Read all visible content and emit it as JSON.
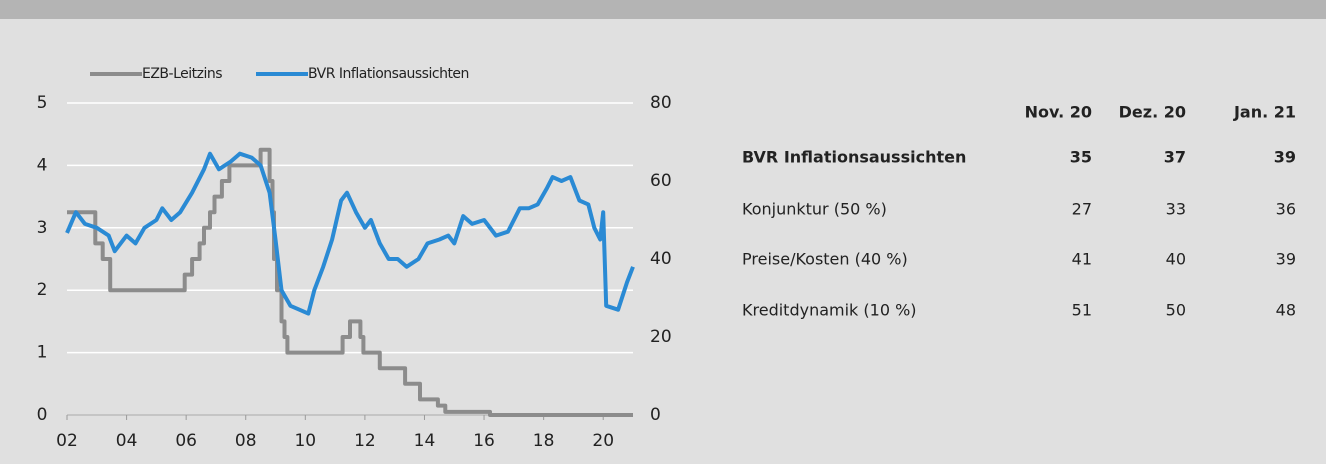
{
  "chart_data": {
    "type": "line",
    "xlim": [
      2002,
      2021
    ],
    "xticks": [
      {
        "value": 2002,
        "label": "02"
      },
      {
        "value": 2004,
        "label": "04"
      },
      {
        "value": 2006,
        "label": "06"
      },
      {
        "value": 2008,
        "label": "08"
      },
      {
        "value": 2010,
        "label": "10"
      },
      {
        "value": 2012,
        "label": "12"
      },
      {
        "value": 2014,
        "label": "14"
      },
      {
        "value": 2016,
        "label": "16"
      },
      {
        "value": 2018,
        "label": "18"
      },
      {
        "value": 2020,
        "label": "20"
      }
    ],
    "ylim": [
      0,
      5
    ],
    "yticks": [
      0,
      1,
      2,
      3,
      4,
      5
    ],
    "y2lim": [
      0,
      80
    ],
    "y2ticks": [
      0,
      20,
      40,
      60,
      80
    ],
    "grid": true,
    "series": [
      {
        "name": "EZB-Leitzins",
        "color": "#8c8c8c",
        "x": [
          2002,
          2002.95,
          2002.95,
          2003.2,
          2003.2,
          2003.45,
          2003.45,
          2005.95,
          2005.95,
          2006.2,
          2006.2,
          2006.45,
          2006.45,
          2006.6,
          2006.6,
          2006.8,
          2006.8,
          2006.95,
          2006.95,
          2007.2,
          2007.2,
          2007.45,
          2007.45,
          2008.5,
          2008.5,
          2008.8,
          2008.8,
          2008.9,
          2008.9,
          2008.95,
          2008.95,
          2009.05,
          2009.05,
          2009.2,
          2009.2,
          2009.3,
          2009.3,
          2009.4,
          2009.4,
          2011.25,
          2011.25,
          2011.5,
          2011.5,
          2011.85,
          2011.85,
          2011.95,
          2011.95,
          2012.5,
          2012.5,
          2013.35,
          2013.35,
          2013.85,
          2013.85,
          2014.45,
          2014.45,
          2014.7,
          2014.7,
          2016.2,
          2016.2,
          2021
        ],
        "values": [
          3.25,
          3.25,
          2.75,
          2.75,
          2.5,
          2.5,
          2.0,
          2.0,
          2.25,
          2.25,
          2.5,
          2.5,
          2.75,
          2.75,
          3.0,
          3.0,
          3.25,
          3.25,
          3.5,
          3.5,
          3.75,
          3.75,
          4.0,
          4.0,
          4.25,
          4.25,
          3.75,
          3.75,
          3.25,
          3.25,
          2.5,
          2.5,
          2.0,
          2.0,
          1.5,
          1.5,
          1.25,
          1.25,
          1.0,
          1.0,
          1.25,
          1.25,
          1.5,
          1.5,
          1.25,
          1.25,
          1.0,
          1.0,
          0.75,
          0.75,
          0.5,
          0.5,
          0.25,
          0.25,
          0.15,
          0.15,
          0.05,
          0.05,
          0.0,
          0.0
        ]
      },
      {
        "name": "BVR Inflationsaussichten",
        "color": "#2a8ad4",
        "axis": "y2",
        "x": [
          2002,
          2002.3,
          2002.6,
          2003.0,
          2003.4,
          2003.6,
          2004.0,
          2004.3,
          2004.6,
          2005.0,
          2005.2,
          2005.5,
          2005.8,
          2006.2,
          2006.6,
          2006.8,
          2007.1,
          2007.5,
          2007.8,
          2008.2,
          2008.5,
          2008.8,
          2009.0,
          2009.2,
          2009.5,
          2009.8,
          2010.1,
          2010.3,
          2010.6,
          2010.9,
          2011.2,
          2011.4,
          2011.7,
          2012.0,
          2012.2,
          2012.5,
          2012.8,
          2013.1,
          2013.4,
          2013.8,
          2014.1,
          2014.5,
          2014.8,
          2015.0,
          2015.3,
          2015.6,
          2016.0,
          2016.4,
          2016.8,
          2017.2,
          2017.5,
          2017.8,
          2018.1,
          2018.3,
          2018.6,
          2018.9,
          2019.2,
          2019.5,
          2019.7,
          2019.9,
          2020.0,
          2020.1,
          2020.5,
          2020.8,
          2021.0
        ],
        "values": [
          46.7,
          52,
          49,
          48,
          46,
          42,
          46,
          44,
          48,
          50,
          53,
          50,
          52,
          57,
          63,
          67,
          63,
          65,
          67,
          66,
          64,
          57,
          45,
          32,
          28,
          27,
          26,
          32,
          38,
          45,
          55,
          57,
          52,
          48,
          50,
          44,
          40,
          40,
          38,
          40,
          44,
          45,
          46,
          44,
          51,
          49,
          50,
          46,
          47,
          53,
          53,
          54,
          58,
          61,
          60,
          61,
          55,
          54,
          48,
          45,
          52,
          28,
          27,
          34,
          38
        ]
      }
    ]
  },
  "table": {
    "header": [
      "Nov. 20",
      "Dez. 20",
      "Jan. 21"
    ],
    "rows": [
      [
        "BVR Inflationsaussichten",
        35,
        37,
        39
      ],
      [
        "Konjunktur (50 %)",
        27,
        33,
        36
      ],
      [
        "Preise/Kosten (40 %)",
        41,
        40,
        39
      ],
      [
        "Kreditdynamik (10 %)",
        51,
        50,
        48
      ]
    ]
  }
}
